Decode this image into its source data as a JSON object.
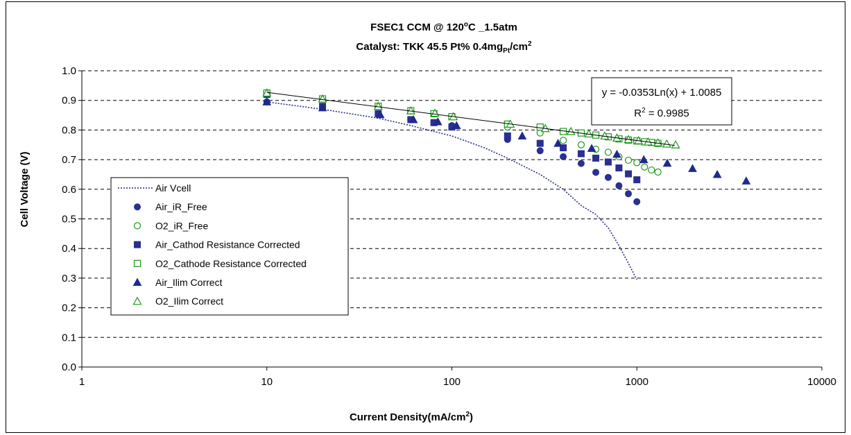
{
  "chart_data": {
    "type": "scatter",
    "title_line1": {
      "pre": "FSEC1 CCM  @ 120",
      "sup": "o",
      "post": "C _1.5atm"
    },
    "title_line2": {
      "pre": "Catalyst: TKK 45.5 Pt%  0.4mg",
      "sub": "Pt",
      "mid": "/cm",
      "sup": "2"
    },
    "xlabel": {
      "pre": "Current Density(mA/cm",
      "sup": "2",
      "post": ")"
    },
    "ylabel": "Cell Voltage (V)",
    "xscale": "log",
    "xlim": [
      1,
      10000
    ],
    "ylim": [
      0.0,
      1.0
    ],
    "x_ticks": [
      "1",
      "10",
      "100",
      "1000",
      "10000"
    ],
    "y_ticks": [
      "0.0",
      "0.1",
      "0.2",
      "0.3",
      "0.4",
      "0.5",
      "0.6",
      "0.7",
      "0.8",
      "0.9",
      "1.0"
    ],
    "grid": "horizontal dashed",
    "legend_position": "left",
    "trendline": {
      "equation": "y = -0.0353Ln(x) + 1.0085",
      "r2_pre": "R",
      "r2_sup": "2",
      "r2_post": " = 0.9985",
      "slope": -0.0353,
      "intercept": 1.0085,
      "x_range": [
        10,
        1600
      ]
    },
    "series": [
      {
        "name": "Air Vcell",
        "marker": "dotted-line",
        "color": "#1f2a8c",
        "x": [
          10,
          20,
          40,
          60,
          80,
          100,
          150,
          200,
          300,
          400,
          500,
          600,
          700,
          800,
          900,
          1000
        ],
        "y": [
          0.895,
          0.87,
          0.84,
          0.815,
          0.795,
          0.78,
          0.74,
          0.705,
          0.65,
          0.6,
          0.545,
          0.515,
          0.47,
          0.41,
          0.35,
          0.295
        ]
      },
      {
        "name": "Air_iR_Free",
        "marker": "circle-filled",
        "color": "#2b2f91",
        "x": [
          10,
          20,
          40,
          60,
          80,
          100,
          200,
          300,
          400,
          500,
          600,
          700,
          800,
          900,
          1000
        ],
        "y": [
          0.895,
          0.875,
          0.855,
          0.835,
          0.825,
          0.815,
          0.768,
          0.73,
          0.71,
          0.687,
          0.657,
          0.64,
          0.612,
          0.585,
          0.558
        ]
      },
      {
        "name": "O2_iR_Free",
        "marker": "circle-open",
        "color": "#1a9a1a",
        "x": [
          10,
          20,
          40,
          60,
          80,
          100,
          200,
          300,
          400,
          500,
          600,
          700,
          800,
          900,
          1000,
          1100,
          1200,
          1300
        ],
        "y": [
          0.92,
          0.905,
          0.88,
          0.865,
          0.855,
          0.845,
          0.81,
          0.79,
          0.765,
          0.75,
          0.735,
          0.725,
          0.71,
          0.698,
          0.69,
          0.675,
          0.665,
          0.658
        ]
      },
      {
        "name": "Air_Cathod Resistance Corrected",
        "marker": "square-filled",
        "color": "#2b2f91",
        "x": [
          10,
          20,
          40,
          60,
          80,
          100,
          200,
          300,
          400,
          500,
          600,
          700,
          800,
          900,
          1000
        ],
        "y": [
          0.92,
          0.88,
          0.855,
          0.835,
          0.825,
          0.81,
          0.78,
          0.755,
          0.74,
          0.72,
          0.705,
          0.692,
          0.672,
          0.652,
          0.632
        ]
      },
      {
        "name": "O2_Cathode Resistance Corrected",
        "marker": "square-open",
        "color": "#1a9a1a",
        "x": [
          10,
          20,
          40,
          60,
          80,
          100,
          200,
          300,
          400,
          500,
          600,
          700,
          800,
          900,
          1000,
          1100,
          1200,
          1300
        ],
        "y": [
          0.925,
          0.905,
          0.88,
          0.865,
          0.855,
          0.845,
          0.82,
          0.81,
          0.795,
          0.79,
          0.783,
          0.777,
          0.77,
          0.766,
          0.763,
          0.76,
          0.758,
          0.755
        ]
      },
      {
        "name": "Air_Ilim Correct",
        "marker": "triangle-filled",
        "color": "#1f2a8c",
        "x": [
          10,
          20,
          41,
          62,
          84,
          106,
          240,
          375,
          570,
          780,
          1090,
          1460,
          2000,
          2720,
          3900
        ],
        "y": [
          0.895,
          0.875,
          0.852,
          0.835,
          0.828,
          0.815,
          0.78,
          0.755,
          0.738,
          0.718,
          0.7,
          0.688,
          0.67,
          0.65,
          0.628
        ]
      },
      {
        "name": "O2_Ilim Correct",
        "marker": "triangle-open",
        "color": "#1a9a1a",
        "x": [
          10,
          20,
          40,
          60,
          81,
          102,
          207,
          320,
          440,
          550,
          670,
          780,
          900,
          1020,
          1150,
          1300,
          1450,
          1620
        ],
        "y": [
          0.925,
          0.905,
          0.88,
          0.865,
          0.857,
          0.845,
          0.82,
          0.805,
          0.795,
          0.787,
          0.78,
          0.773,
          0.768,
          0.764,
          0.76,
          0.757,
          0.753,
          0.75
        ]
      }
    ]
  }
}
